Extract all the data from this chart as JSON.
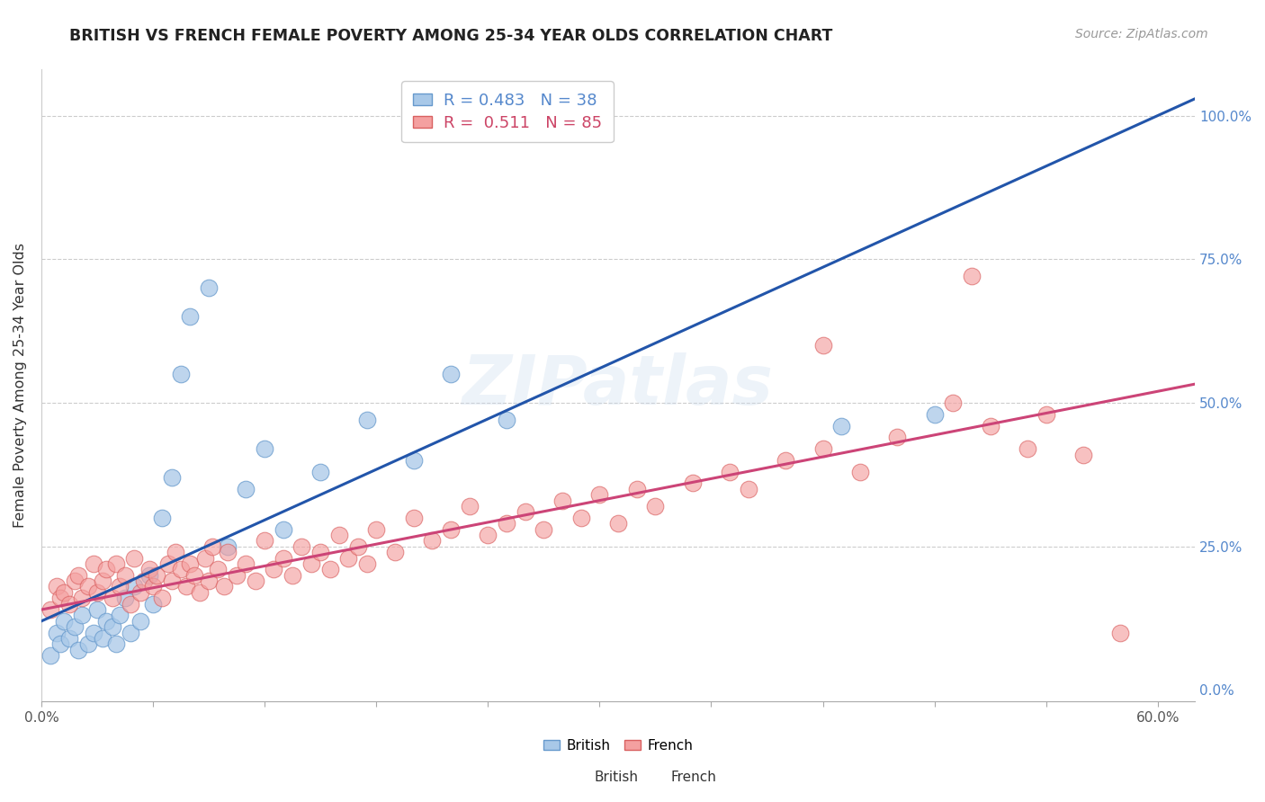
{
  "title": "BRITISH VS FRENCH FEMALE POVERTY AMONG 25-34 YEAR OLDS CORRELATION CHART",
  "source": "Source: ZipAtlas.com",
  "ylabel": "Female Poverty Among 25-34 Year Olds",
  "xlim": [
    0.0,
    0.62
  ],
  "ylim": [
    -0.02,
    1.08
  ],
  "xticks": [
    0.0,
    0.06,
    0.12,
    0.18,
    0.24,
    0.3,
    0.36,
    0.42,
    0.48,
    0.54,
    0.6
  ],
  "xticklabels_show": [
    "0.0%",
    "",
    "",
    "",
    "",
    "",
    "",
    "",
    "",
    "",
    "60.0%"
  ],
  "yticks": [
    0.0,
    0.25,
    0.5,
    0.75,
    1.0
  ],
  "yticklabels_right": [
    "0.0%",
    "25.0%",
    "50.0%",
    "75.0%",
    "100.0%"
  ],
  "british_color": "#a8c8e8",
  "british_edge": "#6699cc",
  "french_color": "#f4a0a0",
  "french_edge": "#d96060",
  "regression_blue": "#2255aa",
  "regression_pink": "#cc4477",
  "legend_R_british": "0.483",
  "legend_N_british": "38",
  "legend_R_french": "0.511",
  "legend_N_french": "85",
  "british_x": [
    0.005,
    0.008,
    0.01,
    0.012,
    0.015,
    0.018,
    0.02,
    0.022,
    0.025,
    0.028,
    0.03,
    0.033,
    0.035,
    0.038,
    0.04,
    0.042,
    0.045,
    0.048,
    0.05,
    0.053,
    0.058,
    0.06,
    0.065,
    0.07,
    0.075,
    0.08,
    0.09,
    0.1,
    0.11,
    0.12,
    0.13,
    0.15,
    0.175,
    0.2,
    0.22,
    0.25,
    0.43,
    0.48
  ],
  "british_y": [
    0.06,
    0.1,
    0.08,
    0.12,
    0.09,
    0.11,
    0.07,
    0.13,
    0.08,
    0.1,
    0.14,
    0.09,
    0.12,
    0.11,
    0.08,
    0.13,
    0.16,
    0.1,
    0.18,
    0.12,
    0.2,
    0.15,
    0.3,
    0.37,
    0.55,
    0.65,
    0.7,
    0.25,
    0.35,
    0.42,
    0.28,
    0.38,
    0.47,
    0.4,
    0.55,
    0.47,
    0.46,
    0.48
  ],
  "french_x": [
    0.005,
    0.008,
    0.01,
    0.012,
    0.015,
    0.018,
    0.02,
    0.022,
    0.025,
    0.028,
    0.03,
    0.033,
    0.035,
    0.038,
    0.04,
    0.042,
    0.045,
    0.048,
    0.05,
    0.053,
    0.055,
    0.058,
    0.06,
    0.062,
    0.065,
    0.068,
    0.07,
    0.072,
    0.075,
    0.078,
    0.08,
    0.082,
    0.085,
    0.088,
    0.09,
    0.092,
    0.095,
    0.098,
    0.1,
    0.105,
    0.11,
    0.115,
    0.12,
    0.125,
    0.13,
    0.135,
    0.14,
    0.145,
    0.15,
    0.155,
    0.16,
    0.165,
    0.17,
    0.175,
    0.18,
    0.19,
    0.2,
    0.21,
    0.22,
    0.23,
    0.24,
    0.25,
    0.26,
    0.27,
    0.28,
    0.29,
    0.3,
    0.31,
    0.32,
    0.33,
    0.35,
    0.37,
    0.38,
    0.4,
    0.42,
    0.44,
    0.46,
    0.49,
    0.51,
    0.53,
    0.42,
    0.5,
    0.54,
    0.56,
    0.58
  ],
  "french_y": [
    0.14,
    0.18,
    0.16,
    0.17,
    0.15,
    0.19,
    0.2,
    0.16,
    0.18,
    0.22,
    0.17,
    0.19,
    0.21,
    0.16,
    0.22,
    0.18,
    0.2,
    0.15,
    0.23,
    0.17,
    0.19,
    0.21,
    0.18,
    0.2,
    0.16,
    0.22,
    0.19,
    0.24,
    0.21,
    0.18,
    0.22,
    0.2,
    0.17,
    0.23,
    0.19,
    0.25,
    0.21,
    0.18,
    0.24,
    0.2,
    0.22,
    0.19,
    0.26,
    0.21,
    0.23,
    0.2,
    0.25,
    0.22,
    0.24,
    0.21,
    0.27,
    0.23,
    0.25,
    0.22,
    0.28,
    0.24,
    0.3,
    0.26,
    0.28,
    0.32,
    0.27,
    0.29,
    0.31,
    0.28,
    0.33,
    0.3,
    0.34,
    0.29,
    0.35,
    0.32,
    0.36,
    0.38,
    0.35,
    0.4,
    0.42,
    0.38,
    0.44,
    0.5,
    0.46,
    0.42,
    0.6,
    0.72,
    0.48,
    0.41,
    0.1
  ]
}
